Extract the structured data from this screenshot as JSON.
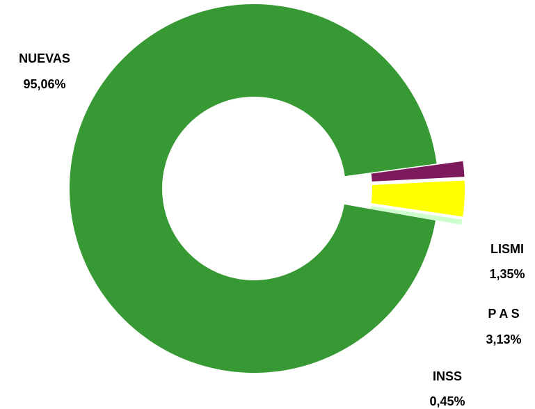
{
  "chart_data": {
    "type": "pie",
    "style": "donut",
    "slices": [
      {
        "label": "NUEVAS",
        "value": 95.06,
        "value_text": "95,06%",
        "color": "#379933",
        "exploded": false
      },
      {
        "label": "LISMI",
        "value": 1.35,
        "value_text": "1,35%",
        "color": "#7d1a5c",
        "exploded": true
      },
      {
        "label": "P A S",
        "value": 3.13,
        "value_text": "3,13%",
        "color": "#ffff00",
        "exploded": true
      },
      {
        "label": "INSS",
        "value": 0.45,
        "value_text": "0,45%",
        "color": "#ccffcc",
        "exploded": true
      }
    ],
    "legend": "none"
  }
}
